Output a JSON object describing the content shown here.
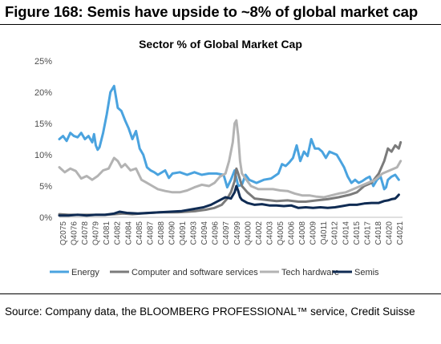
{
  "figure_title": "Figure 168: Semis have upside to ~8% of global market cap",
  "source_note": "Source: Company data, the BLOOMBERG PROFESSIONAL™ service, Credit Suisse",
  "chart_data": {
    "type": "line",
    "title": "Sector % of Global Market Cap",
    "xlabel": "",
    "ylabel": "",
    "ylim": [
      0,
      25
    ],
    "yticks": [
      "0%",
      "5%",
      "10%",
      "15%",
      "20%",
      "25%"
    ],
    "xlim": [
      1975.75,
      2022.75
    ],
    "xticks": [
      "Q2075",
      "Q4076",
      "C4078",
      "Q4079",
      "C4081",
      "C4082",
      "C4084",
      "C4085",
      "C4087",
      "C4088",
      "C4090",
      "Q4091",
      "C4093",
      "C4094",
      "C4096",
      "C4097",
      "C4099",
      "Q4000",
      "C4002",
      "C4003",
      "Q4005",
      "C4006",
      "C4008",
      "C4009",
      "Q4011",
      "C4012",
      "C4014",
      "C4015",
      "C4017",
      "C4018",
      "C4020",
      "C4021"
    ],
    "legend_position": "bottom",
    "grid": false,
    "series": [
      {
        "name": "Energy",
        "color": "#4aa3df",
        "x": [
          1975.75,
          1976.25,
          1976.75,
          1977.25,
          1977.75,
          1978.25,
          1978.75,
          1979.25,
          1979.75,
          1980.25,
          1980.5,
          1980.75,
          1981.0,
          1981.25,
          1981.75,
          1982.25,
          1982.75,
          1983.25,
          1983.75,
          1984.25,
          1984.75,
          1985.25,
          1985.75,
          1986.25,
          1986.75,
          1987.25,
          1987.75,
          1988.25,
          1988.75,
          1989.25,
          1990.25,
          1990.75,
          1991.25,
          1992.25,
          1993.25,
          1994.25,
          1995.25,
          1996.25,
          1997.25,
          1998.25,
          1998.75,
          1999.25,
          1999.75,
          2000.25,
          2000.75,
          2001.25,
          2001.75,
          2002.75,
          2003.75,
          2004.75,
          2005.75,
          2006.25,
          2006.75,
          2007.25,
          2007.75,
          2008.25,
          2008.75,
          2009.25,
          2009.75,
          2010.25,
          2010.75,
          2011.25,
          2011.75,
          2012.25,
          2012.75,
          2013.75,
          2014.25,
          2014.75,
          2015.25,
          2015.75,
          2016.25,
          2016.75,
          2017.25,
          2017.75,
          2018.25,
          2018.75,
          2019.25,
          2019.75,
          2020.25,
          2020.5,
          2020.75,
          2021.25,
          2021.75,
          2022.25
        ],
        "y": [
          12.5,
          13.0,
          12.2,
          13.5,
          13.0,
          12.8,
          13.5,
          12.5,
          13.0,
          12.0,
          13.3,
          11.5,
          10.8,
          11.2,
          13.5,
          16.5,
          20.0,
          21.0,
          17.5,
          17.0,
          15.5,
          14.2,
          12.5,
          13.8,
          11.0,
          10.0,
          8.0,
          7.5,
          7.2,
          6.8,
          7.5,
          6.3,
          7.0,
          7.2,
          6.8,
          7.2,
          6.8,
          7.0,
          7.0,
          6.8,
          4.8,
          6.0,
          7.5,
          5.0,
          5.2,
          6.8,
          6.0,
          5.5,
          6.0,
          6.2,
          7.0,
          8.5,
          8.2,
          8.8,
          9.5,
          11.5,
          9.0,
          10.5,
          9.8,
          12.5,
          11.0,
          11.0,
          10.5,
          9.5,
          10.5,
          10.0,
          9.0,
          8.0,
          6.5,
          5.5,
          6.0,
          5.5,
          5.8,
          6.2,
          6.5,
          5.0,
          6.0,
          6.5,
          4.5,
          4.8,
          6.0,
          6.5,
          6.8,
          6.0
        ]
      },
      {
        "name": "Computer and software services",
        "color": "#7b7b7b",
        "x": [
          1975.75,
          1977.0,
          1978.25,
          1979.5,
          1980.75,
          1982.0,
          1983.25,
          1984.5,
          1985.75,
          1987.0,
          1988.25,
          1989.5,
          1990.75,
          1992.0,
          1993.25,
          1994.5,
          1995.75,
          1997.0,
          1998.0,
          1998.75,
          1999.25,
          1999.75,
          2000.0,
          2000.25,
          2000.75,
          2001.5,
          2002.5,
          2004.0,
          2005.5,
          2007.0,
          2008.5,
          2009.5,
          2011.0,
          2012.5,
          2014.0,
          2015.5,
          2016.5,
          2017.5,
          2018.5,
          2019.5,
          2020.25,
          2020.75,
          2021.25,
          2021.75,
          2022.25,
          2022.5
        ],
        "y": [
          0.5,
          0.4,
          0.4,
          0.4,
          0.4,
          0.4,
          0.5,
          0.6,
          0.5,
          0.6,
          0.7,
          0.8,
          0.8,
          0.8,
          0.9,
          1.0,
          1.2,
          1.5,
          2.0,
          3.0,
          4.0,
          5.8,
          7.8,
          7.0,
          5.0,
          4.0,
          3.0,
          2.8,
          2.6,
          2.7,
          2.5,
          2.5,
          2.7,
          2.9,
          3.2,
          3.6,
          4.0,
          5.0,
          5.5,
          7.0,
          9.0,
          11.0,
          10.5,
          11.5,
          11.0,
          12.0
        ]
      },
      {
        "name": "Tech hardware",
        "color": "#b3b3b3",
        "x": [
          1975.75,
          1976.5,
          1977.25,
          1978.0,
          1978.75,
          1979.5,
          1980.25,
          1981.0,
          1981.75,
          1982.5,
          1983.25,
          1983.75,
          1984.25,
          1984.75,
          1985.5,
          1986.25,
          1987.0,
          1987.75,
          1988.5,
          1989.25,
          1990.25,
          1991.25,
          1992.25,
          1993.25,
          1994.25,
          1995.25,
          1996.25,
          1997.0,
          1997.75,
          1998.5,
          1999.0,
          1999.5,
          1999.75,
          2000.0,
          2000.25,
          2000.5,
          2000.75,
          2001.25,
          2002.0,
          2003.0,
          2004.0,
          2005.0,
          2006.0,
          2007.0,
          2008.0,
          2009.0,
          2010.0,
          2011.0,
          2012.0,
          2013.0,
          2014.0,
          2015.0,
          2016.0,
          2017.0,
          2018.0,
          2019.0,
          2020.0,
          2021.0,
          2022.0,
          2022.5
        ],
        "y": [
          8.0,
          7.2,
          7.8,
          7.4,
          6.2,
          6.6,
          6.0,
          6.6,
          7.5,
          7.8,
          9.5,
          9.0,
          8.0,
          8.5,
          7.5,
          7.8,
          6.0,
          5.5,
          5.0,
          4.5,
          4.2,
          4.0,
          4.0,
          4.3,
          4.8,
          5.2,
          5.0,
          5.5,
          6.5,
          7.0,
          9.0,
          12.0,
          15.0,
          15.5,
          13.0,
          9.0,
          7.0,
          6.2,
          5.0,
          4.5,
          4.5,
          4.5,
          4.3,
          4.2,
          3.8,
          3.5,
          3.5,
          3.3,
          3.2,
          3.5,
          3.8,
          4.0,
          4.5,
          5.0,
          5.5,
          6.0,
          7.0,
          7.5,
          8.0,
          9.0
        ]
      },
      {
        "name": "Semis",
        "color": "#0f2b53",
        "x": [
          1975.75,
          1977.0,
          1978.25,
          1979.5,
          1980.75,
          1982.0,
          1983.25,
          1984.0,
          1985.0,
          1986.5,
          1988.0,
          1989.5,
          1991.0,
          1992.5,
          1994.0,
          1995.5,
          1996.5,
          1997.5,
          1998.5,
          1999.25,
          1999.75,
          2000.0,
          2000.25,
          2000.5,
          2000.75,
          2001.5,
          2002.5,
          2003.5,
          2004.5,
          2005.5,
          2006.5,
          2007.5,
          2008.5,
          2009.5,
          2010.5,
          2011.5,
          2012.5,
          2013.5,
          2014.5,
          2015.5,
          2016.5,
          2017.5,
          2018.5,
          2019.5,
          2020.25,
          2020.75,
          2021.25,
          2021.75,
          2022.0,
          2022.25
        ],
        "y": [
          0.3,
          0.3,
          0.4,
          0.3,
          0.4,
          0.4,
          0.6,
          0.9,
          0.7,
          0.6,
          0.7,
          0.8,
          0.9,
          1.0,
          1.3,
          1.6,
          2.0,
          2.6,
          3.2,
          3.0,
          4.0,
          5.0,
          4.2,
          3.2,
          2.8,
          2.3,
          2.0,
          2.1,
          1.9,
          1.9,
          1.8,
          1.9,
          1.5,
          1.6,
          1.5,
          1.6,
          1.5,
          1.6,
          1.8,
          2.0,
          2.0,
          2.2,
          2.3,
          2.3,
          2.6,
          2.7,
          2.9,
          3.0,
          3.3,
          3.6
        ]
      }
    ]
  }
}
